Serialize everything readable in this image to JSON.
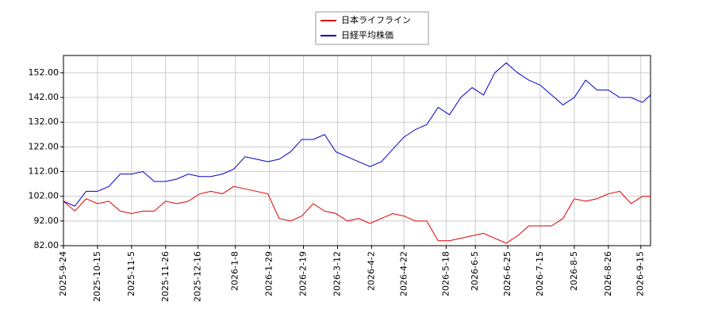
{
  "chart_data": {
    "type": "line",
    "x": [
      "2025-9-24",
      "2025-10-1",
      "2025-10-8",
      "2025-10-15",
      "2025-10-22",
      "2025-10-29",
      "2025-11-5",
      "2025-11-12",
      "2025-11-19",
      "2025-11-26",
      "2025-12-3",
      "2025-12-10",
      "2025-12-17",
      "2025-12-24",
      "2025-12-31",
      "2026-1-7",
      "2026-1-14",
      "2026-1-21",
      "2026-1-28",
      "2026-2-4",
      "2026-2-11",
      "2026-2-18",
      "2026-2-25",
      "2026-3-4",
      "2026-3-11",
      "2026-3-18",
      "2026-3-25",
      "2026-4-1",
      "2026-4-8",
      "2026-4-15",
      "2026-4-22",
      "2026-4-29",
      "2026-5-6",
      "2026-5-13",
      "2026-5-20",
      "2026-5-27",
      "2026-6-3",
      "2026-6-10",
      "2026-6-17",
      "2026-6-24",
      "2026-7-1",
      "2026-7-8",
      "2026-7-15",
      "2026-7-22",
      "2026-7-29",
      "2026-8-5",
      "2026-8-12",
      "2026-8-19",
      "2026-8-26",
      "2026-9-2",
      "2026-9-9",
      "2026-9-16",
      "2026-9-21"
    ],
    "series": [
      {
        "name": "日本ライフライン",
        "color": "#dd0000",
        "values": [
          100,
          96,
          101,
          99,
          100,
          96,
          95,
          96,
          96,
          100,
          99,
          100,
          103,
          104,
          103,
          106,
          105,
          104,
          103,
          93,
          92,
          94,
          99,
          96,
          95,
          92,
          93,
          91,
          93,
          95,
          94,
          92,
          92,
          84,
          84,
          85,
          86,
          87,
          85,
          83,
          86,
          90,
          90,
          90,
          93,
          101,
          100,
          101,
          103,
          104,
          99,
          102,
          102
        ]
      },
      {
        "name": "日経平均株価",
        "color": "#0000cc",
        "values": [
          100,
          98,
          104,
          104,
          106,
          111,
          111,
          112,
          108,
          108,
          109,
          111,
          110,
          110,
          111,
          113,
          118,
          117,
          116,
          117,
          120,
          125,
          125,
          127,
          120,
          118,
          116,
          114,
          116,
          121,
          126,
          129,
          131,
          138,
          135,
          142,
          146,
          143,
          152,
          156,
          152,
          149,
          147,
          143,
          139,
          142,
          149,
          145,
          145,
          142,
          142,
          140,
          143
        ]
      }
    ],
    "xlim": [
      "2025-9-24",
      "2026-9-21"
    ],
    "xticks": [
      "2025-9-24",
      "2025-10-15",
      "2025-11-5",
      "2025-11-26",
      "2025-12-16",
      "2026-1-8",
      "2026-1-29",
      "2026-2-19",
      "2026-3-12",
      "2026-4-2",
      "2026-4-22",
      "2026-5-18",
      "2026-6-5",
      "2026-6-25",
      "2026-7-15",
      "2026-8-5",
      "2026-8-26",
      "2026-9-15"
    ],
    "ylim": [
      82,
      159
    ],
    "yticks": [
      {
        "value": 82,
        "label": "82.00"
      },
      {
        "value": 92,
        "label": "92.00"
      },
      {
        "value": 102,
        "label": "102.00"
      },
      {
        "value": 112,
        "label": "112.00"
      },
      {
        "value": 122,
        "label": "122.00"
      },
      {
        "value": 132,
        "label": "132.00"
      },
      {
        "value": 142,
        "label": "142.00"
      },
      {
        "value": 152,
        "label": "152.00"
      }
    ],
    "grid": true,
    "legend": "top"
  }
}
